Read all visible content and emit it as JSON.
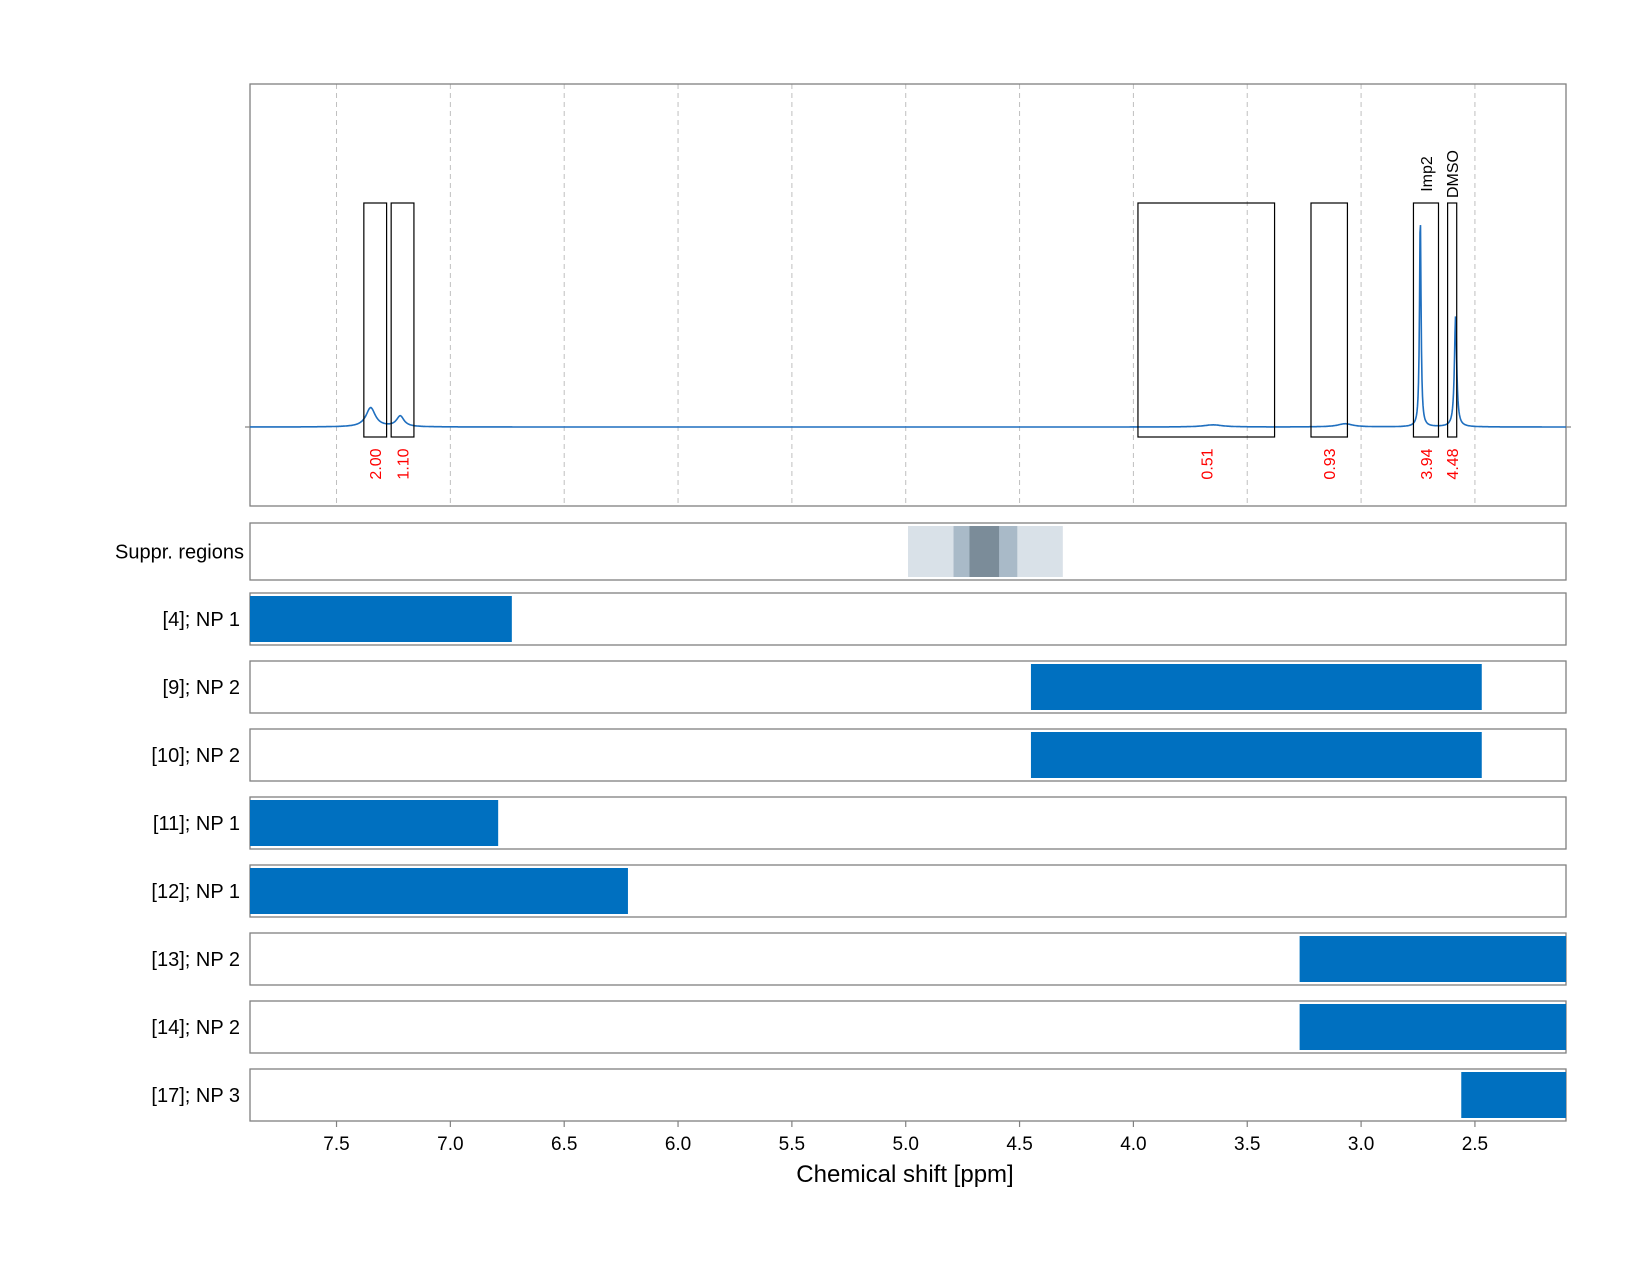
{
  "chart_data": {
    "type": "line",
    "xlabel": "Chemical shift [ppm]",
    "xlim": [
      7.88,
      2.1
    ],
    "x_reversed": true,
    "x_ticks": [
      {
        "value": 7.5,
        "label": "7.5"
      },
      {
        "value": 7.0,
        "label": "7.0"
      },
      {
        "value": 6.5,
        "label": "6.5"
      },
      {
        "value": 6.0,
        "label": "6.0"
      },
      {
        "value": 5.5,
        "label": "5.5"
      },
      {
        "value": 5.0,
        "label": "5.0"
      },
      {
        "value": 4.5,
        "label": "4.5"
      },
      {
        "value": 4.0,
        "label": "4.0"
      },
      {
        "value": 3.5,
        "label": "3.5"
      },
      {
        "value": 3.0,
        "label": "3.0"
      },
      {
        "value": 2.5,
        "label": "2.5"
      }
    ],
    "grid": "vertical dashed",
    "colors": {
      "spectrum": "#1f6fbf",
      "integral_label": "#ff0000",
      "bar": "#0070c0",
      "frame": "#808080",
      "box": "#000000",
      "gridline": "#bfbfbf"
    },
    "spectrum": {
      "baseline_level": 0,
      "peaks": [
        {
          "ppm": 7.35,
          "height": 0.09,
          "width": 0.025
        },
        {
          "ppm": 7.22,
          "height": 0.05,
          "width": 0.02
        },
        {
          "ppm": 3.65,
          "height": 0.01,
          "width": 0.05
        },
        {
          "ppm": 3.07,
          "height": 0.015,
          "width": 0.04
        },
        {
          "ppm": 2.74,
          "height": 1.0,
          "width": 0.004
        },
        {
          "ppm": 2.585,
          "height": 0.52,
          "width": 0.006
        }
      ]
    },
    "integral_regions": [
      {
        "start": 7.38,
        "end": 7.28,
        "value": "2.00",
        "label": ""
      },
      {
        "start": 7.26,
        "end": 7.16,
        "value": "1.10",
        "label": ""
      },
      {
        "start": 3.98,
        "end": 3.38,
        "value": "0.51",
        "label": ""
      },
      {
        "start": 3.22,
        "end": 3.06,
        "value": "0.93",
        "label": ""
      },
      {
        "start": 2.77,
        "end": 2.66,
        "value": "3.94",
        "label": "Imp2"
      },
      {
        "start": 2.62,
        "end": 2.58,
        "value": "4.48",
        "label": "DMSO"
      }
    ],
    "suppression": {
      "label": "Suppr. regions",
      "bands": [
        {
          "start": 4.99,
          "end": 4.31,
          "level": "light"
        },
        {
          "start": 4.79,
          "end": 4.51,
          "level": "medium"
        },
        {
          "start": 4.72,
          "end": 4.59,
          "level": "dark"
        }
      ],
      "band_colors": {
        "light": "#d9e1e8",
        "medium": "#a9bac8",
        "dark": "#7b8c99"
      }
    },
    "assignments": [
      {
        "label": "[4]; NP 1",
        "start": 7.88,
        "end": 6.73
      },
      {
        "label": "[9]; NP 2",
        "start": 4.45,
        "end": 2.47
      },
      {
        "label": "[10]; NP 2",
        "start": 4.45,
        "end": 2.47
      },
      {
        "label": "[11]; NP 1",
        "start": 7.88,
        "end": 6.79
      },
      {
        "label": "[12]; NP 1",
        "start": 7.88,
        "end": 6.22
      },
      {
        "label": "[13]; NP 2",
        "start": 3.27,
        "end": 2.1
      },
      {
        "label": "[14]; NP 2",
        "start": 3.27,
        "end": 2.1
      },
      {
        "label": "[17]; NP 3",
        "start": 2.56,
        "end": 2.1
      }
    ]
  }
}
